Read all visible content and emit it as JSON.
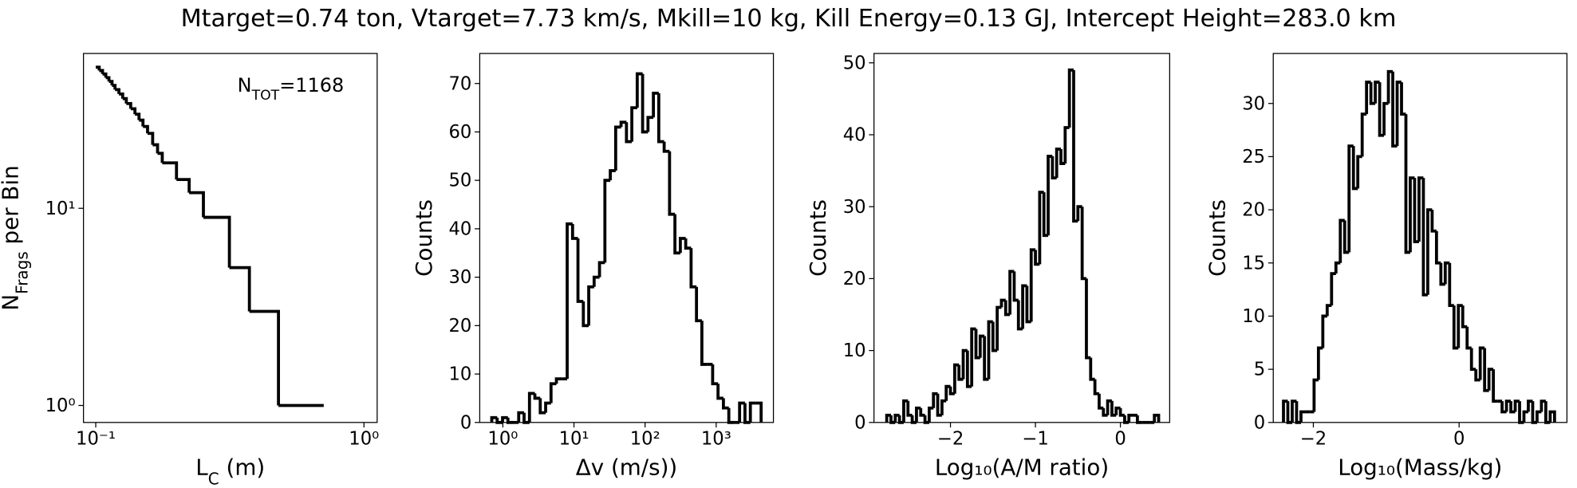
{
  "title": "Mtarget=0.74 ton, Vtarget=7.73 km/s, Mkill=10 kg, Kill Energy=0.13 GJ, Intercept Height=283.0 km",
  "chart_data": [
    {
      "type": "step",
      "xscale": "log",
      "yscale": "log",
      "color": "#000000",
      "xlabel": [
        "L",
        "C",
        " (m)"
      ],
      "ylabel": [
        "N",
        "Frags",
        " per Bin"
      ],
      "annotation": [
        "N",
        "TOT",
        "=1168"
      ],
      "x": [
        0.1,
        0.103,
        0.106,
        0.109,
        0.112,
        0.115,
        0.118,
        0.122,
        0.126,
        0.13,
        0.135,
        0.14,
        0.145,
        0.15,
        0.156,
        0.163,
        0.17,
        0.177,
        0.2,
        0.223,
        0.252,
        0.315,
        0.374,
        0.48,
        0.708
      ],
      "values": [
        52,
        50,
        48,
        46,
        44,
        42,
        40,
        38,
        36,
        34,
        32,
        30,
        28,
        26,
        24,
        21,
        19,
        17,
        14,
        12,
        9,
        5,
        3,
        1,
        1
      ],
      "xlim": [
        0.09,
        1.12
      ],
      "ylim": [
        0.82,
        61
      ],
      "xticks": [
        {
          "value": 0.1,
          "label": "10⁻¹"
        },
        {
          "value": 1,
          "label": "10⁰"
        }
      ],
      "yticks": [
        {
          "value": 1,
          "label": "10⁰"
        },
        {
          "value": 10,
          "label": "10¹"
        }
      ]
    },
    {
      "type": "histogram",
      "xscale": "log",
      "color": "#000000",
      "xlabel": "Δv (m/s))",
      "ylabel": "Counts",
      "bins": [
        0.698,
        0.831,
        0.99,
        1.178,
        1.403,
        1.67,
        1.989,
        2.368,
        2.819,
        3.356,
        3.996,
        4.758,
        5.664,
        6.744,
        8.029,
        9.559,
        11.38,
        13.55,
        16.13,
        19.21,
        22.87,
        27.23,
        32.42,
        38.6,
        45.95,
        54.71,
        65.14,
        77.55,
        92.33,
        109.9,
        130.9,
        155.8,
        185.5,
        220.9,
        263.0,
        313.1,
        372.8,
        443.8,
        528.4,
        629.1,
        749.0,
        891.8,
        1061.7,
        1264.1,
        1505.0,
        1791.8,
        2133.3,
        2539.9,
        3024.0,
        3600.4,
        4286.6
      ],
      "values": [
        1,
        0,
        1,
        0,
        0,
        2,
        0,
        6,
        5,
        2,
        4,
        8,
        9,
        9,
        41,
        38,
        25,
        20,
        28,
        30,
        33,
        50,
        52,
        61,
        62,
        58,
        65,
        72,
        60,
        63,
        68,
        58,
        56,
        43,
        35,
        38,
        36,
        28,
        21,
        12,
        12,
        8,
        5,
        3,
        0,
        0,
        4,
        0,
        4,
        4
      ],
      "xlim": [
        0.473,
        6380
      ],
      "ylim": [
        0,
        76.2
      ],
      "xticks": [
        {
          "value": 1,
          "label": "10⁰"
        },
        {
          "value": 10,
          "label": "10¹"
        },
        {
          "value": 100,
          "label": "10²"
        },
        {
          "value": 1000,
          "label": "10³"
        }
      ],
      "yticks": [
        0,
        10,
        20,
        30,
        40,
        50,
        60,
        70
      ]
    },
    {
      "type": "histogram",
      "color": "#000000",
      "xlabel": "Log₁₀(A/M ratio)",
      "ylabel": "Counts",
      "bins": [
        -2.75,
        -2.7,
        -2.65,
        -2.6,
        -2.55,
        -2.5,
        -2.45,
        -2.4,
        -2.35,
        -2.3,
        -2.25,
        -2.2,
        -2.15,
        -2.1,
        -2.05,
        -2.0,
        -1.95,
        -1.9,
        -1.85,
        -1.8,
        -1.75,
        -1.7,
        -1.65,
        -1.6,
        -1.55,
        -1.5,
        -1.45,
        -1.4,
        -1.35,
        -1.3,
        -1.25,
        -1.2,
        -1.15,
        -1.1,
        -1.05,
        -1.0,
        -0.95,
        -0.9,
        -0.85,
        -0.8,
        -0.75,
        -0.7,
        -0.65,
        -0.6,
        -0.55,
        -0.5,
        -0.45,
        -0.4,
        -0.35,
        -0.3,
        -0.25,
        -0.2,
        -0.15,
        -0.1,
        -0.05,
        0.0,
        0.05,
        0.1,
        0.15,
        0.2,
        0.25,
        0.3,
        0.35,
        0.4,
        0.45
      ],
      "values": [
        1,
        0,
        1,
        0,
        3,
        1,
        0,
        2,
        1,
        0,
        2,
        4,
        1,
        3,
        5,
        4,
        8,
        6,
        10,
        5,
        13,
        9,
        12,
        6,
        14,
        10,
        16,
        17,
        15,
        21,
        17,
        13,
        19,
        14,
        24,
        22,
        32,
        26,
        37,
        34,
        38,
        36,
        41,
        49,
        28,
        30,
        20,
        9,
        6,
        4,
        2,
        1,
        3,
        1,
        2,
        1,
        0,
        1,
        1,
        0,
        0,
        0,
        0,
        1
      ],
      "xlim": [
        -2.9,
        0.58
      ],
      "ylim": [
        0,
        51.3
      ],
      "xticks": [
        {
          "value": -2,
          "label": "−2"
        },
        {
          "value": -1,
          "label": "−1"
        },
        0
      ],
      "yticks": [
        0,
        10,
        20,
        30,
        40,
        50
      ]
    },
    {
      "type": "histogram",
      "color": "#000000",
      "xlabel": "Log₁₀(Mass/kg)",
      "ylabel": "Counts",
      "bins": [
        -2.41,
        -2.35,
        -2.29,
        -2.23,
        -2.17,
        -2.11,
        -2.05,
        -1.99,
        -1.93,
        -1.87,
        -1.81,
        -1.75,
        -1.69,
        -1.63,
        -1.57,
        -1.51,
        -1.45,
        -1.39,
        -1.33,
        -1.27,
        -1.21,
        -1.15,
        -1.09,
        -1.03,
        -0.97,
        -0.91,
        -0.85,
        -0.79,
        -0.73,
        -0.67,
        -0.61,
        -0.55,
        -0.49,
        -0.43,
        -0.37,
        -0.31,
        -0.25,
        -0.19,
        -0.13,
        -0.07,
        -0.01,
        0.05,
        0.11,
        0.17,
        0.23,
        0.29,
        0.35,
        0.41,
        0.47,
        0.53,
        0.59,
        0.65,
        0.71,
        0.77,
        0.83,
        0.89,
        0.95,
        1.01,
        1.07,
        1.13,
        1.19,
        1.25,
        1.31
      ],
      "values": [
        2,
        0,
        2,
        0,
        1,
        1,
        1,
        4,
        7,
        10,
        11,
        14,
        15,
        19,
        16,
        26,
        22,
        25,
        29,
        32,
        30,
        32,
        27,
        30,
        33,
        26,
        32,
        29,
        16,
        23,
        17,
        23,
        12,
        20,
        18,
        15,
        13,
        15,
        11,
        7,
        11,
        9,
        7,
        5,
        4,
        7,
        3,
        5,
        2,
        2,
        1,
        2,
        1,
        2,
        0,
        1,
        2,
        0,
        1,
        2,
        0,
        1
      ],
      "xlim": [
        -2.55,
        1.48
      ],
      "ylim": [
        0,
        34.7
      ],
      "xticks": [
        {
          "value": -2,
          "label": "−2"
        },
        0
      ],
      "yticks": [
        0,
        5,
        10,
        15,
        20,
        25,
        30
      ]
    }
  ]
}
